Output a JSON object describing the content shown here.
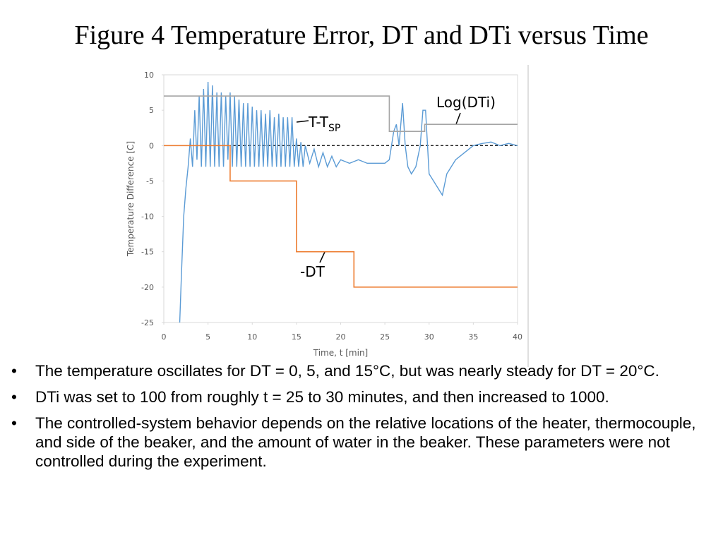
{
  "slide_title": "Figure 4 Temperature Error, DT and DTi versus Time",
  "bullets": [
    "The temperature oscillates for DT = 0, 5, and 15°C, but was nearly steady for DT = 20°C.",
    "DTi was set to 100 from roughly t = 25 to 30 minutes, and then increased to 1000.",
    "The controlled-system behavior depends on the relative locations of the heater, thermocouple, and side of the beaker, and the amount of water in the beaker.  These parameters were not controlled during the experiment."
  ],
  "chart_data": {
    "type": "line",
    "x_label": "Time, t [min]",
    "y_label": "Temperature Difference [C]",
    "xlim": [
      0,
      40
    ],
    "xticks": [
      0,
      5,
      10,
      15,
      20,
      25,
      30,
      35,
      40
    ],
    "ylim": [
      -25,
      10
    ],
    "yticks": [
      -25,
      -20,
      -15,
      -10,
      -5,
      0,
      5,
      10
    ],
    "hline": 0,
    "grid": false,
    "annotations": [
      {
        "text": "T-T",
        "sub": "SP"
      },
      {
        "text": "Log(DTi)"
      },
      {
        "text": "-DT"
      }
    ],
    "series": [
      {
        "color": "#5b9bd5",
        "step": false,
        "x": [
          1.8,
          2.0,
          2.25,
          2.5,
          2.75,
          3.0,
          3.25,
          3.5,
          3.75,
          4.0,
          4.25,
          4.5,
          4.75,
          5.0,
          5.25,
          5.5,
          5.75,
          6.0,
          6.25,
          6.5,
          6.75,
          7.0,
          7.25,
          7.5,
          7.75,
          8.0,
          8.25,
          8.5,
          8.75,
          9.0,
          9.25,
          9.5,
          9.75,
          10.0,
          10.25,
          10.5,
          10.75,
          11.0,
          11.25,
          11.5,
          11.75,
          12.0,
          12.25,
          12.5,
          12.75,
          13.0,
          13.25,
          13.5,
          13.75,
          14.0,
          14.25,
          14.5,
          14.75,
          15.0,
          15.25,
          15.5,
          15.75,
          16.0,
          16.5,
          17.0,
          17.5,
          18.0,
          18.5,
          19.0,
          19.5,
          20,
          21,
          22,
          23,
          24,
          25,
          25.5,
          26,
          26.3,
          26.6,
          27,
          27.3,
          27.6,
          28,
          28.5,
          29,
          29.3,
          29.6,
          30,
          30.5,
          31,
          31.5,
          32,
          32.5,
          33,
          34,
          35,
          36,
          37,
          38,
          39,
          40
        ],
        "values": [
          -25,
          -18,
          -10,
          -6,
          -3,
          1,
          -3,
          5,
          -2,
          7,
          -3,
          8,
          -3,
          9,
          -3,
          8.5,
          -3,
          7.5,
          -3,
          7.5,
          -3,
          7,
          -2,
          7.5,
          -3,
          7,
          -3,
          6.5,
          -3,
          6,
          -3,
          6,
          -3,
          5.5,
          -3,
          5,
          -3,
          5,
          -3,
          4.5,
          -3,
          5,
          -3,
          4,
          -3,
          4.5,
          -3,
          4,
          -3,
          4,
          -3,
          4,
          -3,
          1,
          -3,
          0.5,
          -3,
          0,
          -2.5,
          -0.5,
          -3,
          -1,
          -3,
          -1.5,
          -3,
          -2,
          -2.5,
          -2,
          -2.5,
          -2.5,
          -2.5,
          -2,
          2,
          3,
          0,
          6,
          0,
          -3,
          -4,
          -3,
          0,
          5,
          5,
          -4,
          -5,
          -6,
          -7,
          -4,
          -3,
          -2,
          -1,
          0,
          0.3,
          0.5,
          0,
          0.3,
          0
        ]
      },
      {
        "color": "#a5a5a5",
        "step": true,
        "x": [
          0,
          25.5,
          29.5,
          40
        ],
        "values": [
          7,
          2,
          3,
          3
        ]
      },
      {
        "color": "#ed7d31",
        "step": true,
        "x": [
          0,
          7.5,
          15,
          21.5,
          40
        ],
        "values": [
          0,
          -5,
          -15,
          -20,
          -20
        ]
      }
    ]
  }
}
